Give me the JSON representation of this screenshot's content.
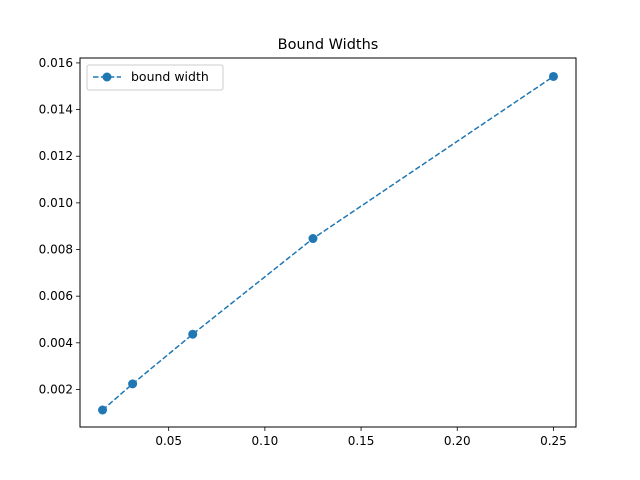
{
  "chart_data": {
    "type": "line",
    "title": "Bound Widths",
    "xlabel": "",
    "ylabel": "",
    "xlim": [
      0.003906,
      0.261719
    ],
    "ylim": [
      0.000391,
      0.016211
    ],
    "x_ticks": [
      0.05,
      0.1,
      0.15,
      0.2,
      0.25
    ],
    "x_tick_labels": [
      "0.05",
      "0.10",
      "0.15",
      "0.20",
      "0.25"
    ],
    "y_ticks": [
      0.002,
      0.004,
      0.006,
      0.008,
      0.01,
      0.012,
      0.014,
      0.016
    ],
    "y_tick_labels": [
      "0.002",
      "0.004",
      "0.006",
      "0.008",
      "0.010",
      "0.012",
      "0.014",
      "0.016"
    ],
    "grid": false,
    "legend_position": "upper-left",
    "series": [
      {
        "name": "bound width",
        "color": "#1f77b4",
        "line_style": "dashed",
        "marker": "circle",
        "x": [
          0.015625,
          0.03125,
          0.0625,
          0.125,
          0.25
        ],
        "y": [
          0.00112,
          0.00224,
          0.00437,
          0.00847,
          0.01542
        ]
      }
    ]
  }
}
